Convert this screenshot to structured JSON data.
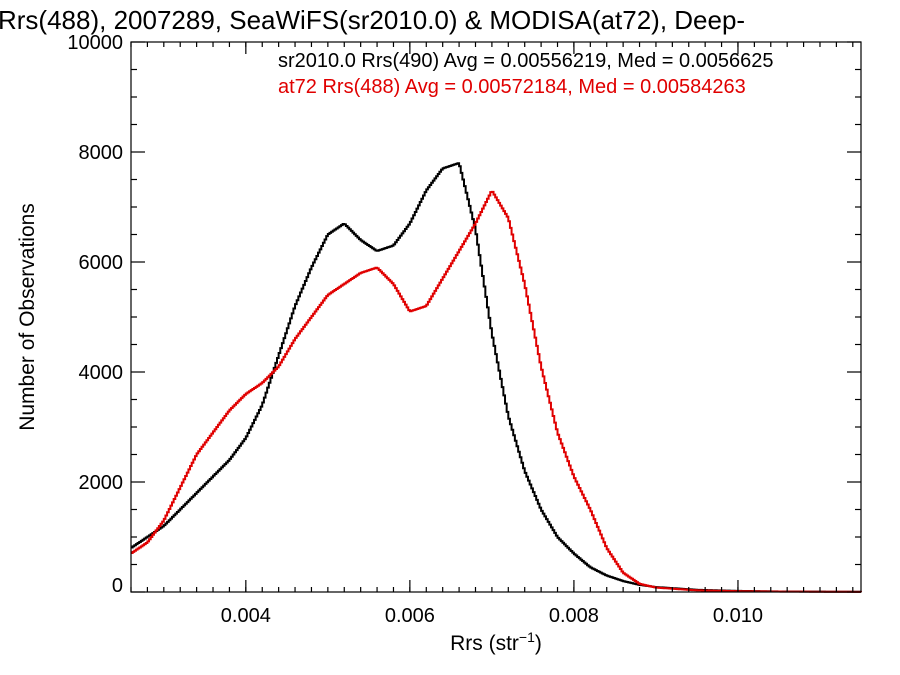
{
  "chart_data": {
    "type": "line",
    "title": "Rrs(488), 2007289, SeaWiFS(sr2010.0) & MODISA(at72), Deep-",
    "xlabel": "Rrs (str",
    "xlabel_superscript": "−1",
    "xlabel_suffix": ")",
    "ylabel": "Number of Observations",
    "xlim": [
      0.0026,
      0.0115
    ],
    "ylim": [
      0,
      10000
    ],
    "x_ticks": [
      0.004,
      0.006,
      0.008,
      0.01
    ],
    "x_tick_labels": [
      "0.004",
      "0.006",
      "0.008",
      "0.010"
    ],
    "y_ticks": [
      0,
      2000,
      4000,
      6000,
      8000,
      10000
    ],
    "y_tick_labels": [
      "0",
      "2000",
      "4000",
      "6000",
      "8000",
      "10000"
    ],
    "grid": false,
    "legend_position": "top-right",
    "series": [
      {
        "name": "sr2010.0 Rrs(490) Avg = 0.00556219, Med = 0.0056625",
        "color": "#000000",
        "x": [
          0.0026,
          0.0028,
          0.003,
          0.0032,
          0.0034,
          0.0036,
          0.0038,
          0.004,
          0.0042,
          0.0044,
          0.0046,
          0.0048,
          0.005,
          0.0052,
          0.0054,
          0.0056,
          0.0058,
          0.006,
          0.0062,
          0.0064,
          0.0066,
          0.0068,
          0.007,
          0.0072,
          0.0074,
          0.0076,
          0.0078,
          0.008,
          0.0082,
          0.0084,
          0.0086,
          0.0088,
          0.009,
          0.0095,
          0.01,
          0.0105,
          0.011,
          0.0115
        ],
        "values": [
          800,
          1000,
          1200,
          1500,
          1800,
          2100,
          2400,
          2800,
          3400,
          4300,
          5200,
          5900,
          6500,
          6700,
          6400,
          6200,
          6300,
          6700,
          7300,
          7700,
          7800,
          6600,
          4700,
          3200,
          2200,
          1500,
          1000,
          700,
          450,
          300,
          200,
          130,
          90,
          40,
          20,
          10,
          6,
          4
        ]
      },
      {
        "name": "at72 Rrs(488) Avg = 0.00572184, Med = 0.00584263",
        "color": "#e00000",
        "x": [
          0.0026,
          0.0028,
          0.003,
          0.0032,
          0.0034,
          0.0036,
          0.0038,
          0.004,
          0.0042,
          0.0044,
          0.0046,
          0.0048,
          0.005,
          0.0052,
          0.0054,
          0.0056,
          0.0058,
          0.006,
          0.0062,
          0.0064,
          0.0066,
          0.0068,
          0.007,
          0.0072,
          0.0074,
          0.0076,
          0.0078,
          0.008,
          0.0082,
          0.0084,
          0.0086,
          0.0088,
          0.009,
          0.0095,
          0.01,
          0.0105,
          0.011,
          0.0115
        ],
        "values": [
          700,
          900,
          1300,
          1900,
          2500,
          2900,
          3300,
          3600,
          3800,
          4100,
          4600,
          5000,
          5400,
          5600,
          5800,
          5900,
          5600,
          5100,
          5200,
          5700,
          6200,
          6700,
          7300,
          6800,
          5600,
          4100,
          2900,
          2100,
          1500,
          800,
          350,
          150,
          80,
          30,
          15,
          8,
          5,
          3
        ]
      }
    ]
  }
}
